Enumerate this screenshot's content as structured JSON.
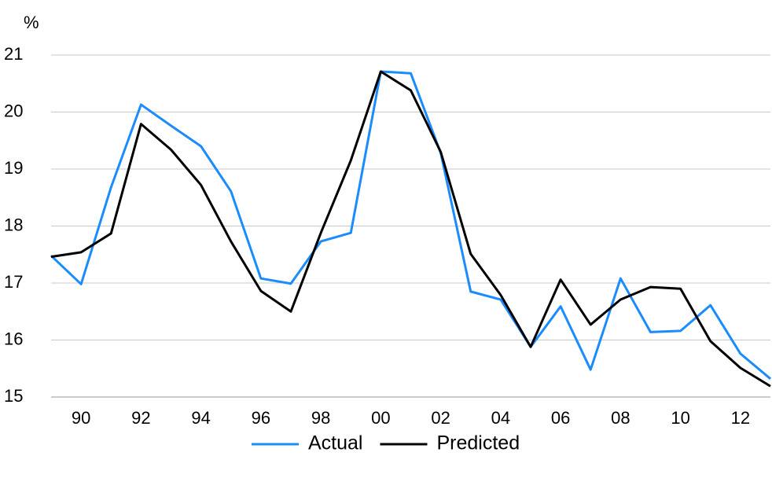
{
  "chart_data": {
    "type": "line",
    "y_label": "%",
    "categories": [
      null,
      "90",
      null,
      "92",
      null,
      "94",
      null,
      "96",
      null,
      "98",
      null,
      "00",
      null,
      "02",
      null,
      "04",
      null,
      "06",
      null,
      "08",
      null,
      "10",
      null,
      "12",
      null
    ],
    "series": [
      {
        "name": "Actual",
        "color": "#1a8cff",
        "values": [
          17.48,
          16.98,
          18.68,
          20.13,
          19.76,
          19.4,
          18.61,
          17.08,
          16.99,
          17.73,
          17.88,
          20.71,
          20.68,
          19.28,
          16.85,
          16.71,
          15.88,
          16.59,
          15.48,
          17.08,
          16.14,
          16.16,
          16.61,
          15.76,
          15.32
        ]
      },
      {
        "name": "Predicted",
        "color": "#000000",
        "values": [
          17.46,
          17.54,
          17.87,
          19.79,
          19.34,
          18.72,
          17.73,
          16.86,
          16.5,
          17.88,
          19.15,
          20.71,
          20.38,
          19.3,
          17.51,
          16.79,
          15.88,
          17.06,
          16.27,
          16.71,
          16.93,
          16.9,
          15.98,
          15.51,
          15.19
        ]
      }
    ],
    "ylim": [
      15,
      21
    ],
    "yticks": [
      15,
      16,
      17,
      18,
      19,
      20,
      21
    ],
    "grid": true,
    "legend": "bottom"
  }
}
